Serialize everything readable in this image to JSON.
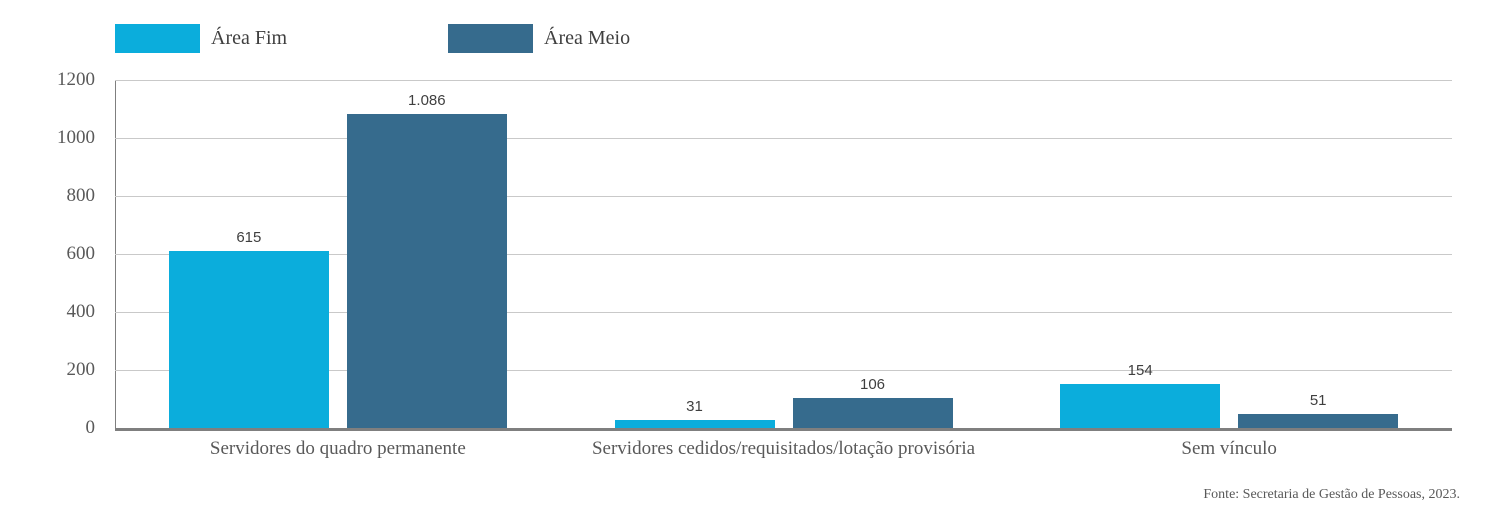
{
  "chart_data": {
    "type": "bar",
    "title": "",
    "xlabel": "",
    "ylabel": "",
    "categories": [
      "Servidores do quadro permanente",
      "Servidores cedidos/requisitados/lotação provisória",
      "Sem vínculo"
    ],
    "series": [
      {
        "name": "Área Fim",
        "color": "#0badдc",
        "values": [
          615,
          31,
          154
        ],
        "labels": [
          "615",
          "31",
          "154"
        ]
      },
      {
        "name": "Área Meio",
        "color": "#366b8d",
        "values": [
          1086,
          106,
          51
        ],
        "labels": [
          "1.086",
          "106",
          "51"
        ]
      }
    ],
    "ylim": [
      0,
      1200
    ],
    "ytick_step": 200,
    "yticks": [
      "0",
      "200",
      "400",
      "600",
      "800",
      "1000",
      "1200"
    ],
    "grid": true,
    "legend_position": "top-left",
    "source": "Fonte: Secretaria de Gestão de Pessoas, 2023."
  },
  "colors": {
    "series_area_fim": "#0baddc",
    "series_area_meio": "#366b8d",
    "gridline": "#c9c9c9",
    "axis": "#7f7f7f",
    "tick_text": "#595959",
    "label_text": "#3f3f3f"
  }
}
